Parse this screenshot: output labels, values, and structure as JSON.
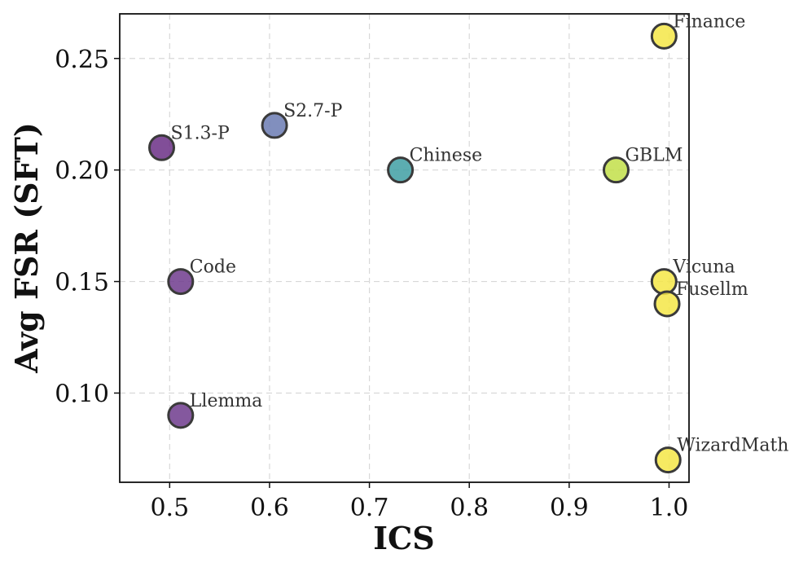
{
  "chart_data": {
    "type": "scatter",
    "title": "",
    "xlabel": "ICS",
    "ylabel": "Avg FSR (SFT)",
    "xlim": [
      0.45,
      1.02
    ],
    "ylim": [
      0.06,
      0.27
    ],
    "xticks": [
      0.5,
      0.6,
      0.7,
      0.8,
      0.9,
      1.0
    ],
    "xtick_labels": [
      "0.5",
      "0.6",
      "0.7",
      "0.8",
      "0.9",
      "1.0"
    ],
    "yticks": [
      0.1,
      0.15,
      0.2,
      0.25
    ],
    "ytick_labels": [
      "0.10",
      "0.15",
      "0.20",
      "0.25"
    ],
    "grid": true,
    "points": [
      {
        "label": "Finance",
        "x": 0.995,
        "y": 0.26,
        "color": "#f5e646"
      },
      {
        "label": "S2.7-P",
        "x": 0.605,
        "y": 0.22,
        "color": "#6b7bb3"
      },
      {
        "label": "S1.3-P",
        "x": 0.492,
        "y": 0.21,
        "color": "#6b2f86"
      },
      {
        "label": "Chinese",
        "x": 0.731,
        "y": 0.2,
        "color": "#3f9fa3"
      },
      {
        "label": "GBLM",
        "x": 0.947,
        "y": 0.2,
        "color": "#c2df49"
      },
      {
        "label": "Code",
        "x": 0.511,
        "y": 0.15,
        "color": "#6f3b8d"
      },
      {
        "label": "Vicuna",
        "x": 0.995,
        "y": 0.15,
        "color": "#f5e646"
      },
      {
        "label": "Fusellm",
        "x": 0.998,
        "y": 0.14,
        "color": "#f5e646"
      },
      {
        "label": "Llemma",
        "x": 0.511,
        "y": 0.09,
        "color": "#6f3b8d"
      },
      {
        "label": "WizardMath",
        "x": 0.999,
        "y": 0.07,
        "color": "#f5e646"
      }
    ]
  }
}
